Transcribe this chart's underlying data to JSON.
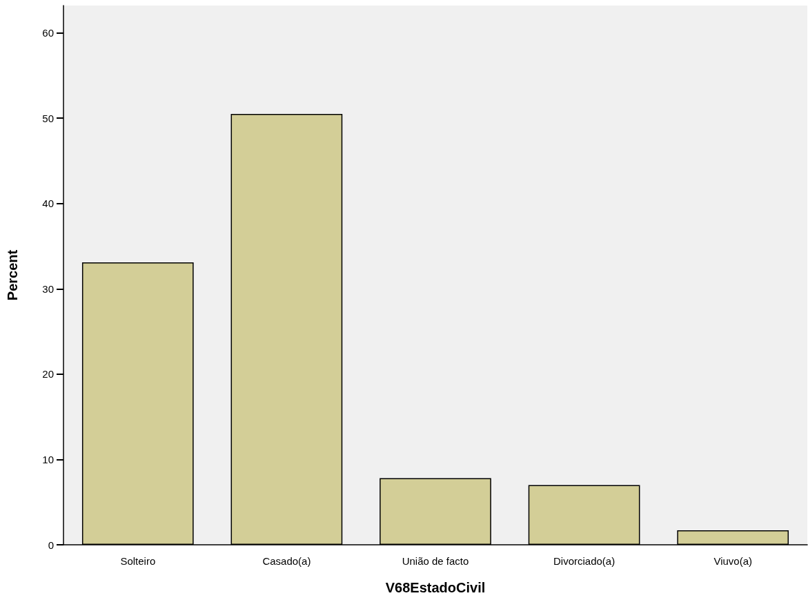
{
  "chart_data": {
    "type": "bar",
    "xlabel": "V68EstadoCivil",
    "ylabel": "Percent",
    "categories": [
      "Solteiro",
      "Casado(a)",
      "União de facto",
      "Divorciado(a)",
      "Viuvo(a)"
    ],
    "values": [
      33.1,
      50.5,
      7.8,
      7.0,
      1.7
    ],
    "color": "#d3ce97",
    "ylim": [
      0,
      63.2
    ],
    "yticks": [
      0,
      10,
      20,
      30,
      40,
      50,
      60
    ],
    "grid": false
  }
}
